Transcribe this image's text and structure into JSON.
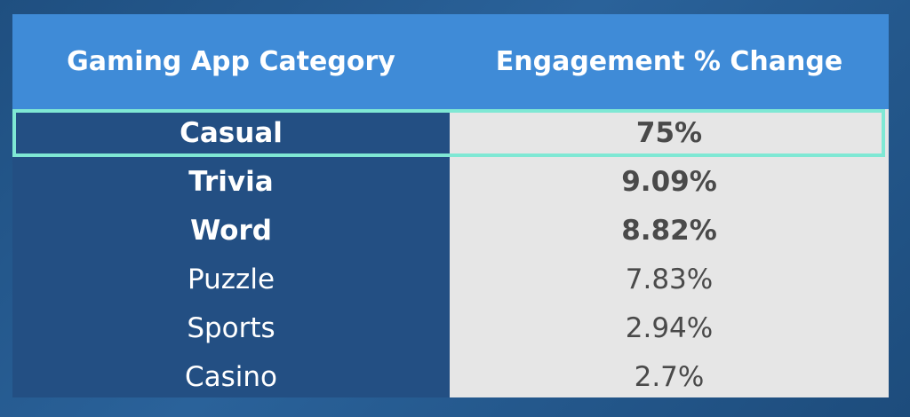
{
  "chart_data": {
    "type": "table",
    "columns": [
      "Gaming App Category",
      "Engagement % Change"
    ],
    "rows": [
      {
        "category": "Casual",
        "change": "75%",
        "value": 75,
        "emphasis": true,
        "highlighted": true
      },
      {
        "category": "Trivia",
        "change": "9.09%",
        "value": 9.09,
        "emphasis": true,
        "highlighted": false
      },
      {
        "category": "Word",
        "change": "8.82%",
        "value": 8.82,
        "emphasis": true,
        "highlighted": false
      },
      {
        "category": "Puzzle",
        "change": "7.83%",
        "value": 7.83,
        "emphasis": false,
        "highlighted": false
      },
      {
        "category": "Sports",
        "change": "2.94%",
        "value": 2.94,
        "emphasis": false,
        "highlighted": false
      },
      {
        "category": "Casino",
        "change": "2.7%",
        "value": 2.7,
        "emphasis": false,
        "highlighted": false
      }
    ]
  },
  "colors": {
    "header_bg": "#3f8bd7",
    "left_column_bg": "#234f83",
    "right_column_bg": "#e6e6e6",
    "highlight_border": "#7fe8d4",
    "value_text": "#4a4a4a"
  }
}
